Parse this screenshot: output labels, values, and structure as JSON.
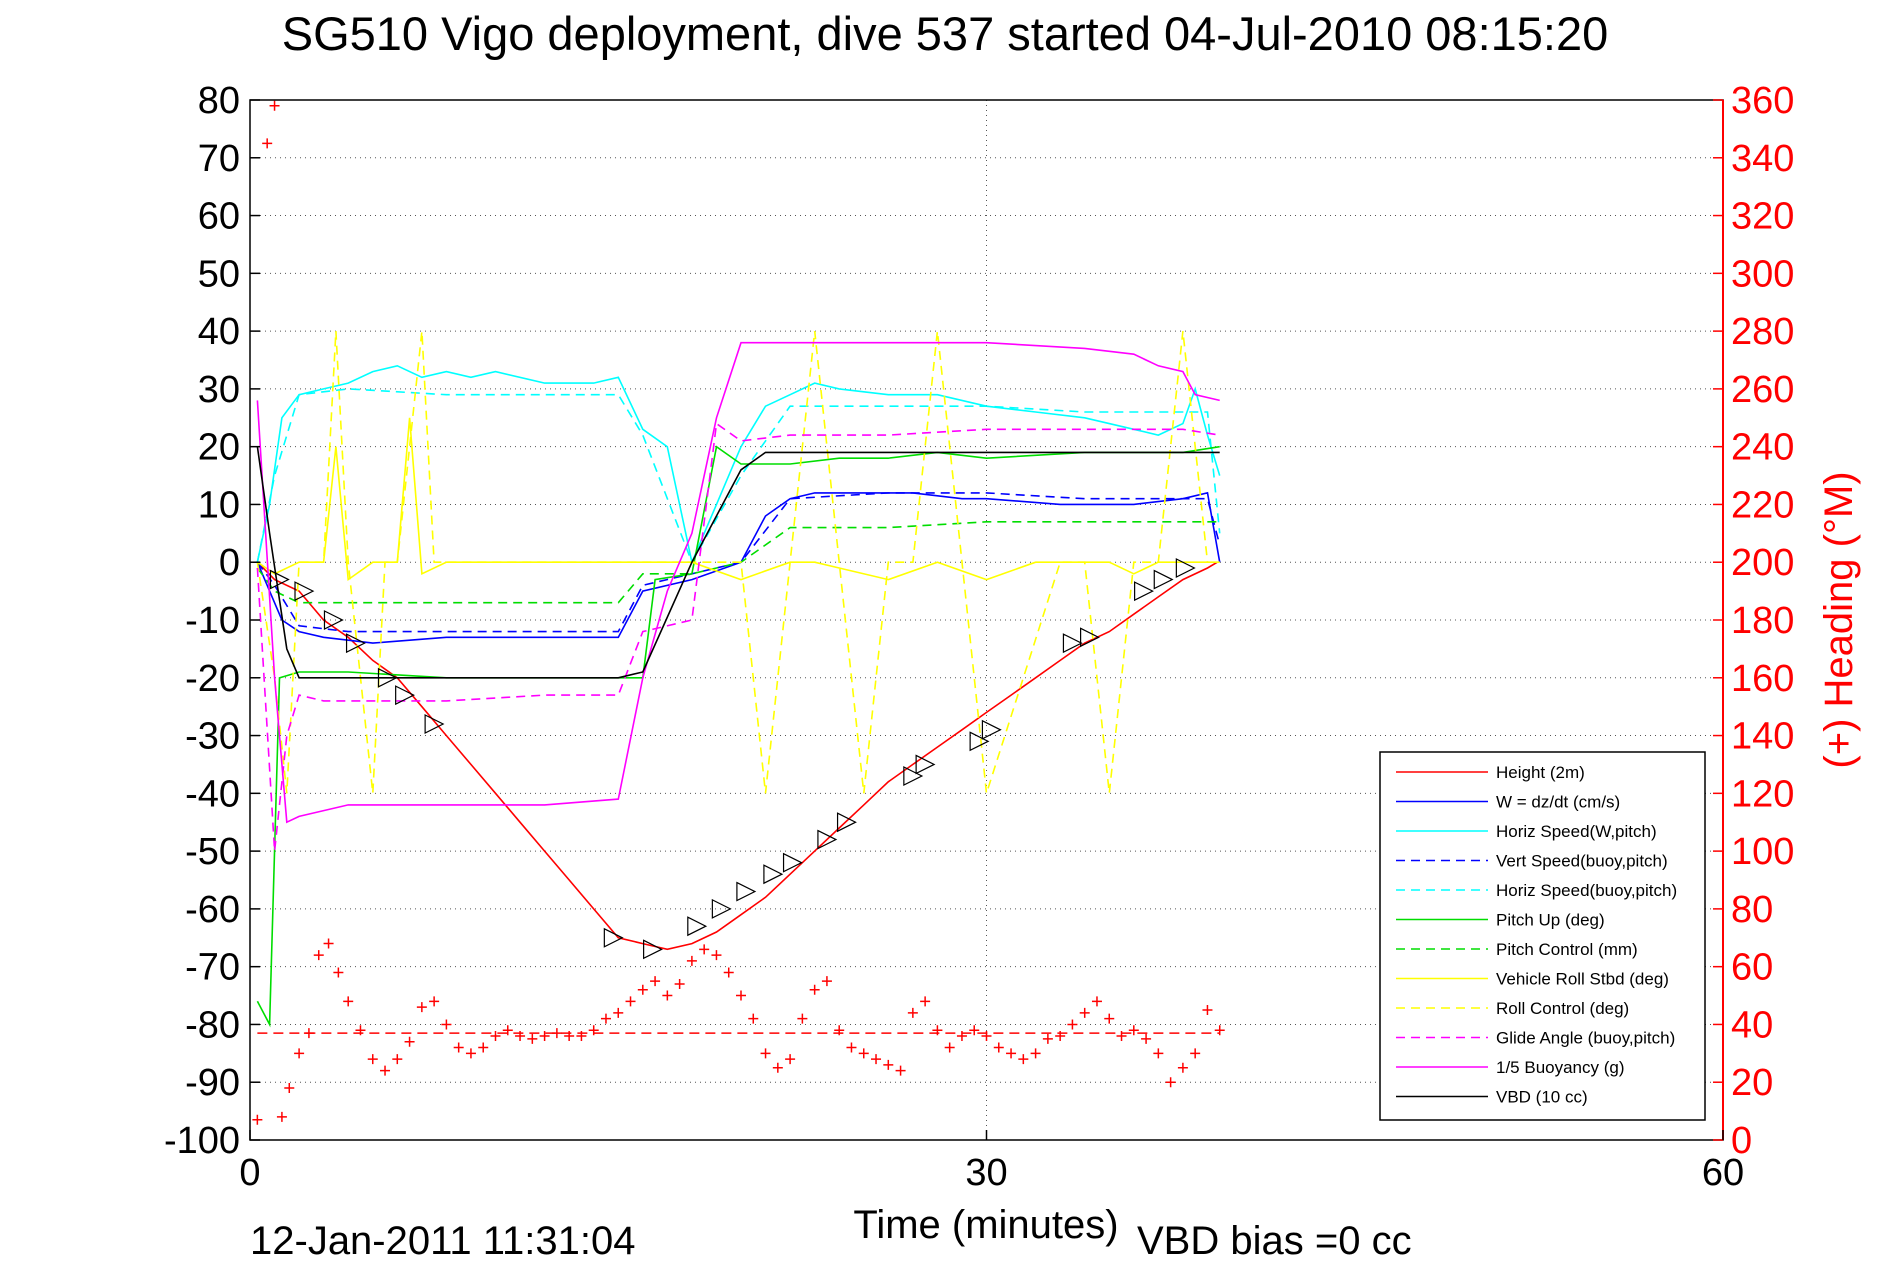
{
  "chart_data": {
    "type": "line",
    "title": "SG510 Vigo deployment, dive 537 started 04-Jul-2010 08:15:20",
    "xlabel": "Time (minutes)",
    "ylabel_right": "(+) Heading (°M)",
    "footer_left": "12-Jan-2011 11:31:04",
    "footer_right": "VBD bias =0 cc",
    "xlim": [
      0,
      60
    ],
    "ylim": [
      -100,
      80
    ],
    "y2lim": [
      0,
      360
    ],
    "x_ticks": [
      0,
      30,
      60
    ],
    "y_ticks": [
      80,
      70,
      60,
      50,
      40,
      30,
      20,
      10,
      0,
      -10,
      -20,
      -30,
      -40,
      -50,
      -60,
      -70,
      -80,
      -90,
      -100
    ],
    "y2_ticks": [
      360,
      340,
      320,
      300,
      280,
      260,
      240,
      220,
      200,
      180,
      160,
      140,
      120,
      100,
      80,
      60,
      40,
      20,
      0
    ],
    "grid": true,
    "legend_position": "bottom-right",
    "colors": {
      "height": "#ff0000",
      "w": "#0000ff",
      "horiz": "#00ffff",
      "pitch": "#00dd00",
      "roll": "#ffff00",
      "glide": "#ff00ff",
      "buoy": "#ff00ff",
      "vbd": "#000000",
      "heading": "#ff0000"
    },
    "series": [
      {
        "key": "height",
        "name": "Height (2m)",
        "style": "solid",
        "color": "#ff0000",
        "x": [
          0.3,
          1,
          2,
          3,
          4,
          5,
          6,
          7,
          8,
          9,
          10,
          11,
          12,
          13,
          14,
          15,
          16,
          17,
          18,
          19,
          20,
          21,
          22,
          23,
          24,
          25,
          26,
          27,
          28,
          29,
          30,
          31,
          32,
          33,
          34,
          35,
          36,
          37,
          38,
          39,
          39.4
        ],
        "y": [
          0,
          -3,
          -5,
          -10,
          -13,
          -17,
          -20,
          -25,
          -30,
          -35,
          -40,
          -45,
          -50,
          -55,
          -60,
          -65,
          -66,
          -67,
          -66,
          -64,
          -61,
          -58,
          -54,
          -50,
          -46,
          -42,
          -38,
          -35,
          -32,
          -29,
          -26,
          -23,
          -20,
          -17,
          -14,
          -12,
          -9,
          -6,
          -3,
          -1,
          0
        ]
      },
      {
        "key": "w",
        "name": "W = dz/dt (cm/s)",
        "style": "solid",
        "color": "#0000ff",
        "x": [
          0.3,
          0.8,
          1.3,
          2,
          3,
          5,
          8,
          12,
          15,
          16,
          18,
          20,
          21,
          22,
          23,
          25,
          27,
          29,
          30,
          33,
          36,
          38,
          39,
          39.5
        ],
        "y": [
          0,
          -5,
          -10,
          -12,
          -13,
          -14,
          -13,
          -13,
          -13,
          -5,
          -3,
          0,
          8,
          11,
          12,
          12,
          12,
          11,
          11,
          10,
          10,
          11,
          12,
          0
        ]
      },
      {
        "key": "horiz_w",
        "name": "Horiz Speed(W,pitch)",
        "style": "solid",
        "color": "#00ffff",
        "x": [
          0.3,
          0.8,
          1.3,
          2,
          3,
          4,
          5,
          6,
          7,
          8,
          9,
          10,
          12,
          14,
          15,
          16,
          17,
          18,
          19,
          20,
          21,
          22,
          23,
          24,
          26,
          28,
          30,
          32,
          34,
          36,
          37,
          38,
          38.5,
          39,
          39.5
        ],
        "y": [
          0,
          10,
          25,
          29,
          30,
          31,
          33,
          34,
          32,
          33,
          32,
          33,
          31,
          31,
          32,
          23,
          20,
          0,
          10,
          20,
          27,
          29,
          31,
          30,
          29,
          29,
          27,
          26,
          25,
          23,
          22,
          24,
          30,
          22,
          15
        ]
      },
      {
        "key": "vert_buoy",
        "name": "Vert Speed(buoy,pitch)",
        "style": "dashed",
        "color": "#0000ff",
        "x": [
          0.3,
          1,
          2,
          4,
          8,
          12,
          15,
          16,
          18,
          20,
          22,
          26,
          30,
          34,
          38,
          39,
          39.5
        ],
        "y": [
          0,
          -4,
          -11,
          -12,
          -12,
          -12,
          -12,
          -4,
          -2,
          0,
          11,
          12,
          12,
          11,
          11,
          11,
          3
        ]
      },
      {
        "key": "horiz_buoy",
        "name": "Horiz Speed(buoy,pitch)",
        "style": "dashed",
        "color": "#00ffff",
        "x": [
          0.3,
          1,
          2,
          4,
          8,
          12,
          15,
          16,
          18,
          20,
          22,
          26,
          30,
          34,
          38,
          39,
          39.5
        ],
        "y": [
          0,
          15,
          29,
          30,
          29,
          29,
          29,
          22,
          0,
          15,
          27,
          27,
          27,
          26,
          26,
          26,
          5
        ]
      },
      {
        "key": "pitch_up",
        "name": "Pitch Up (deg)",
        "style": "solid",
        "color": "#00dd00",
        "x": [
          0.3,
          0.8,
          1.2,
          2,
          4,
          8,
          12,
          16,
          16.5,
          18,
          19,
          20,
          22,
          24,
          26,
          28,
          30,
          34,
          38,
          39.5
        ],
        "y": [
          -76,
          -80,
          -20,
          -19,
          -19,
          -20,
          -20,
          -20,
          -3,
          -2,
          20,
          17,
          17,
          18,
          18,
          19,
          18,
          19,
          19,
          20
        ]
      },
      {
        "key": "pitch_ctrl",
        "name": "Pitch Control (mm)",
        "style": "dashed",
        "color": "#00dd00",
        "x": [
          0.3,
          1,
          2,
          4,
          8,
          12,
          15,
          16,
          18,
          19,
          20,
          22,
          26,
          30,
          34,
          38,
          39.5
        ],
        "y": [
          -1,
          -5,
          -7,
          -7,
          -7,
          -7,
          -7,
          -2,
          -2,
          -1,
          0,
          6,
          6,
          7,
          7,
          7,
          7
        ]
      },
      {
        "key": "roll",
        "name": "Vehicle Roll Stbd (deg)",
        "style": "solid",
        "color": "#ffff00",
        "x": [
          0.3,
          1,
          2,
          3,
          3.5,
          4,
          5,
          6,
          6.5,
          7,
          8,
          9,
          12,
          16,
          18,
          20,
          22,
          23,
          24,
          26,
          28,
          30,
          32,
          34,
          35,
          36,
          37,
          38,
          39,
          39.5
        ],
        "y": [
          0,
          -2,
          0,
          0,
          20,
          -3,
          0,
          0,
          25,
          -2,
          0,
          0,
          0,
          0,
          0,
          -3,
          0,
          0,
          -1,
          -3,
          0,
          -3,
          0,
          0,
          0,
          -2,
          0,
          0,
          0,
          0
        ]
      },
      {
        "key": "roll_ctrl",
        "name": "Roll Control (deg)",
        "style": "dashed",
        "color": "#ffff00",
        "x": [
          0.3,
          1,
          1.5,
          2,
          3,
          3.5,
          4,
          5,
          5.5,
          6,
          7,
          7.5,
          8,
          9,
          10,
          15,
          17,
          18,
          20,
          21,
          22,
          23,
          24,
          25,
          26,
          27,
          28,
          29,
          30,
          33,
          34,
          35,
          36,
          37,
          38,
          39
        ],
        "y": [
          0,
          -20,
          -40,
          0,
          0,
          40,
          0,
          -40,
          0,
          0,
          40,
          0,
          0,
          0,
          0,
          0,
          0,
          0,
          0,
          -40,
          0,
          40,
          0,
          -40,
          0,
          0,
          40,
          0,
          -40,
          0,
          0,
          -40,
          0,
          0,
          40,
          0
        ]
      },
      {
        "key": "glide",
        "name": "Glide Angle (buoy,pitch)",
        "style": "dashed",
        "color": "#ff00ff",
        "x": [
          0.3,
          1,
          1.5,
          2,
          3,
          5,
          8,
          12,
          15,
          16,
          18,
          19,
          20,
          22,
          26,
          30,
          34,
          38,
          39.5
        ],
        "y": [
          -1,
          -50,
          -30,
          -23,
          -24,
          -24,
          -24,
          -23,
          -23,
          -12,
          -10,
          24,
          21,
          22,
          22,
          23,
          23,
          23,
          22
        ]
      },
      {
        "key": "buoy",
        "name": "1/5 Buoyancy (g)",
        "style": "solid",
        "color": "#ff00ff",
        "x": [
          0.3,
          1,
          1.5,
          2,
          4,
          8,
          12,
          15,
          16,
          17,
          18,
          19,
          20,
          22,
          26,
          30,
          34,
          36,
          37,
          38,
          38.5,
          39.5
        ],
        "y": [
          28,
          -20,
          -45,
          -44,
          -42,
          -42,
          -42,
          -41,
          -20,
          -5,
          5,
          25,
          38,
          38,
          38,
          38,
          37,
          36,
          34,
          33,
          29,
          28
        ]
      },
      {
        "key": "vbd",
        "name": "VBD (10 cc)",
        "style": "solid",
        "color": "#000000",
        "x": [
          0.3,
          0.8,
          1.5,
          2,
          4,
          8,
          12,
          15,
          16,
          18,
          20,
          21,
          22,
          26,
          30,
          34,
          38,
          39,
          39.5
        ],
        "y": [
          20,
          5,
          -15,
          -20,
          -20,
          -20,
          -20,
          -20,
          -19,
          0,
          16,
          19,
          19,
          19,
          19,
          19,
          19,
          19,
          19
        ]
      }
    ],
    "heading": {
      "name": "(+) Heading (°M)",
      "target": 37,
      "x": [
        0.3,
        0.7,
        1.0,
        1.3,
        1.6,
        2.0,
        2.4,
        2.8,
        3.2,
        3.6,
        4.0,
        4.5,
        5.0,
        5.5,
        6.0,
        6.5,
        7.0,
        7.5,
        8.0,
        8.5,
        9.0,
        9.5,
        10.0,
        10.5,
        11.0,
        11.5,
        12.0,
        12.5,
        13.0,
        13.5,
        14.0,
        14.5,
        15.0,
        15.5,
        16.0,
        16.5,
        17.0,
        17.5,
        18.0,
        18.5,
        19.0,
        19.5,
        20.0,
        20.5,
        21.0,
        21.5,
        22.0,
        22.5,
        23.0,
        23.5,
        24.0,
        24.5,
        25.0,
        25.5,
        26.0,
        26.5,
        27.0,
        27.5,
        28.0,
        28.5,
        29.0,
        29.5,
        30.0,
        30.5,
        31.0,
        31.5,
        32.0,
        32.5,
        33.0,
        33.5,
        34.0,
        34.5,
        35.0,
        35.5,
        36.0,
        36.5,
        37.0,
        37.5,
        38.0,
        38.5,
        39.0,
        39.5
      ],
      "y": [
        7,
        345,
        358,
        8,
        18,
        30,
        37,
        64,
        68,
        58,
        48,
        38,
        28,
        24,
        28,
        34,
        46,
        48,
        40,
        32,
        30,
        32,
        36,
        38,
        36,
        35,
        36,
        37,
        36,
        36,
        38,
        42,
        44,
        48,
        52,
        55,
        50,
        54,
        62,
        66,
        64,
        58,
        50,
        42,
        30,
        25,
        28,
        42,
        52,
        55,
        38,
        32,
        30,
        28,
        26,
        24,
        44,
        48,
        38,
        32,
        36,
        38,
        36,
        32,
        30,
        28,
        30,
        35,
        36,
        40,
        44,
        48,
        42,
        36,
        38,
        35,
        30,
        20,
        25,
        30,
        45,
        38
      ]
    },
    "markers": {
      "x": [
        1.2,
        2.2,
        3.4,
        4.3,
        5.6,
        6.3,
        7.5,
        14.8,
        16.4,
        18.2,
        19.2,
        20.2,
        21.3,
        22.1,
        23.5,
        24.3,
        27.0,
        27.5,
        29.7,
        30.2,
        33.5,
        34.2,
        36.4,
        37.2,
        38.1
      ],
      "y": [
        -3,
        -5,
        -10,
        -14,
        -20,
        -23,
        -28,
        -65,
        -67,
        -63,
        -60,
        -57,
        -54,
        -52,
        -48,
        -45,
        -37,
        -35,
        -31,
        -29,
        -14,
        -13,
        -5,
        -3,
        -1
      ]
    }
  }
}
